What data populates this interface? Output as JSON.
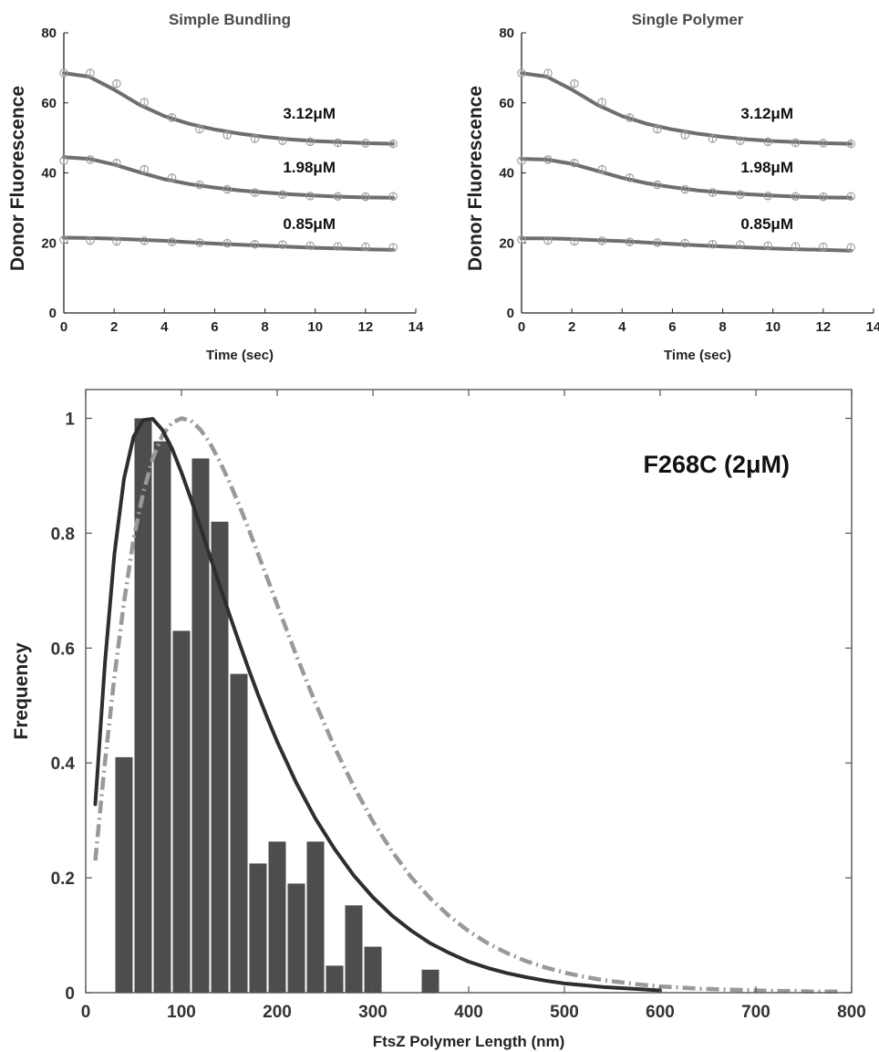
{
  "chart_data": [
    {
      "type": "line",
      "title": "Simple Bundling",
      "xlabel": "Time (sec)",
      "ylabel": "Donor Fluorescence",
      "xlim": [
        0,
        14
      ],
      "ylim": [
        0,
        80
      ],
      "xticks": [
        0,
        2,
        4,
        6,
        8,
        10,
        12,
        14
      ],
      "yticks": [
        0,
        20,
        40,
        60,
        80
      ],
      "grid": false,
      "series": [
        {
          "name": "3.12μM",
          "data_x": [
            0,
            1.05,
            2.1,
            3.2,
            4.3,
            5.4,
            6.5,
            7.6,
            8.7,
            9.8,
            10.9,
            12.0,
            13.1
          ],
          "data_y": [
            68.5,
            68.5,
            65.5,
            60.2,
            55.8,
            52.5,
            50.8,
            49.8,
            49.2,
            48.9,
            48.6,
            48.5,
            48.3
          ],
          "fit_x": [
            0,
            1.0,
            2.0,
            3.0,
            4.0,
            5.0,
            6.0,
            7.0,
            8.0,
            9.0,
            10.0,
            11.0,
            12.0,
            13.1
          ],
          "fit_y": [
            68.5,
            67.5,
            63.8,
            59.5,
            56.2,
            54.0,
            52.4,
            51.2,
            50.3,
            49.6,
            49.1,
            48.8,
            48.5,
            48.3
          ]
        },
        {
          "name": "1.98μM",
          "data_x": [
            0,
            1.05,
            2.1,
            3.2,
            4.3,
            5.4,
            6.5,
            7.6,
            8.7,
            9.8,
            10.9,
            12.0,
            13.1
          ],
          "data_y": [
            43.5,
            43.8,
            42.8,
            41.0,
            38.6,
            36.6,
            35.3,
            34.4,
            33.8,
            33.4,
            33.3,
            33.2,
            33.3
          ],
          "fit_x": [
            0,
            1.0,
            2.0,
            3.0,
            4.0,
            5.0,
            6.0,
            7.0,
            8.0,
            9.0,
            10.0,
            11.0,
            12.0,
            13.1
          ],
          "fit_y": [
            44.5,
            44.0,
            42.4,
            40.2,
            38.2,
            36.8,
            35.8,
            35.0,
            34.4,
            33.9,
            33.5,
            33.2,
            33.0,
            32.9
          ]
        },
        {
          "name": "0.85μM",
          "data_x": [
            0,
            1.05,
            2.1,
            3.2,
            4.3,
            5.4,
            6.5,
            7.6,
            8.7,
            9.8,
            10.9,
            12.0,
            13.1
          ],
          "data_y": [
            20.9,
            20.7,
            20.5,
            20.6,
            20.3,
            20.1,
            19.9,
            19.6,
            19.5,
            19.2,
            19.0,
            18.9,
            18.7
          ],
          "fit_x": [
            0,
            1.0,
            2.0,
            3.0,
            4.0,
            5.0,
            6.0,
            7.0,
            8.0,
            9.0,
            10.0,
            11.0,
            12.0,
            13.1
          ],
          "fit_y": [
            21.5,
            21.4,
            21.2,
            20.9,
            20.6,
            20.2,
            19.8,
            19.5,
            19.2,
            18.9,
            18.6,
            18.4,
            18.2,
            18.0
          ]
        }
      ]
    },
    {
      "type": "line",
      "title": "Single Polymer",
      "xlabel": "Time (sec)",
      "ylabel": "Donor Fluorescence",
      "xlim": [
        0,
        14
      ],
      "ylim": [
        0,
        80
      ],
      "xticks": [
        0,
        2,
        4,
        6,
        8,
        10,
        12,
        14
      ],
      "yticks": [
        0,
        20,
        40,
        60,
        80
      ],
      "grid": false,
      "series": [
        {
          "name": "3.12μM",
          "data_x": [
            0,
            1.05,
            2.1,
            3.2,
            4.3,
            5.4,
            6.5,
            7.6,
            8.7,
            9.8,
            10.9,
            12.0,
            13.1
          ],
          "data_y": [
            68.5,
            68.5,
            65.5,
            60.2,
            55.8,
            52.5,
            50.8,
            49.8,
            49.2,
            48.9,
            48.6,
            48.5,
            48.3
          ],
          "fit_x": [
            0,
            1.0,
            2.0,
            3.0,
            4.0,
            5.0,
            6.0,
            7.0,
            8.0,
            9.0,
            10.0,
            11.0,
            12.0,
            13.1
          ],
          "fit_y": [
            68.5,
            67.5,
            63.8,
            59.5,
            56.2,
            54.0,
            52.4,
            51.2,
            50.3,
            49.6,
            49.1,
            48.8,
            48.5,
            48.3
          ]
        },
        {
          "name": "1.98μM",
          "data_x": [
            0,
            1.05,
            2.1,
            3.2,
            4.3,
            5.4,
            6.5,
            7.6,
            8.7,
            9.8,
            10.9,
            12.0,
            13.1
          ],
          "data_y": [
            43.5,
            43.8,
            42.8,
            41.0,
            38.6,
            36.6,
            35.3,
            34.4,
            33.8,
            33.4,
            33.3,
            33.2,
            33.3
          ],
          "fit_x": [
            0,
            1.0,
            2.0,
            3.0,
            4.0,
            5.0,
            6.0,
            7.0,
            8.0,
            9.0,
            10.0,
            11.0,
            12.0,
            13.1
          ],
          "fit_y": [
            44.0,
            43.8,
            42.6,
            40.6,
            38.6,
            37.0,
            35.9,
            35.0,
            34.4,
            33.9,
            33.5,
            33.2,
            33.0,
            32.9
          ]
        },
        {
          "name": "0.85μM",
          "data_x": [
            0,
            1.05,
            2.1,
            3.2,
            4.3,
            5.4,
            6.5,
            7.6,
            8.7,
            9.8,
            10.9,
            12.0,
            13.1
          ],
          "data_y": [
            20.9,
            20.7,
            20.5,
            20.6,
            20.3,
            20.1,
            19.9,
            19.6,
            19.5,
            19.2,
            19.0,
            18.9,
            18.7
          ],
          "fit_x": [
            0,
            1.0,
            2.0,
            3.0,
            4.0,
            5.0,
            6.0,
            7.0,
            8.0,
            9.0,
            10.0,
            11.0,
            12.0,
            13.1
          ],
          "fit_y": [
            21.3,
            21.3,
            21.1,
            20.8,
            20.5,
            20.1,
            19.7,
            19.3,
            19.0,
            18.7,
            18.4,
            18.2,
            18.0,
            17.8
          ]
        }
      ]
    },
    {
      "type": "bar",
      "title": "",
      "annotation": "F268C (2μM)",
      "xlabel": "FtsZ Polymer Length (nm)",
      "ylabel": "Frequency",
      "xlim": [
        0,
        800
      ],
      "ylim": [
        0,
        1.05
      ],
      "xticks": [
        0,
        100,
        200,
        300,
        400,
        500,
        600,
        700,
        800
      ],
      "yticks": [
        0,
        0.2,
        0.4,
        0.6,
        0.8,
        1
      ],
      "ytick_labels": [
        "0",
        "0.2",
        "0.4",
        "0.6",
        "0.8",
        "1"
      ],
      "grid": false,
      "bar_width": 20,
      "categories": [
        40,
        60,
        80,
        100,
        120,
        140,
        160,
        180,
        200,
        220,
        240,
        260,
        280,
        300,
        360
      ],
      "values": [
        0.41,
        1.0,
        0.96,
        0.63,
        0.93,
        0.82,
        0.555,
        0.225,
        0.263,
        0.19,
        0.263,
        0.047,
        0.152,
        0.08,
        0.04
      ],
      "colors": {
        "bars": "#4d4d4d",
        "solid_curve": "#2e2e2e",
        "dashed_curve": "#999999",
        "axes": "#555555"
      },
      "curves": [
        {
          "style": "solid",
          "x": [
            10,
            20,
            30,
            40,
            50,
            60,
            70,
            80,
            90,
            100,
            110,
            120,
            130,
            140,
            150,
            160,
            170,
            180,
            190,
            200,
            220,
            240,
            260,
            280,
            300,
            320,
            340,
            360,
            380,
            400,
            420,
            440,
            460,
            480,
            500,
            520,
            540,
            560,
            580,
            600
          ],
          "y": [
            0.328,
            0.572,
            0.764,
            0.895,
            0.968,
            0.997,
            0.999,
            0.98,
            0.948,
            0.906,
            0.859,
            0.81,
            0.759,
            0.708,
            0.659,
            0.611,
            0.564,
            0.519,
            0.477,
            0.437,
            0.365,
            0.303,
            0.25,
            0.204,
            0.166,
            0.134,
            0.108,
            0.086,
            0.069,
            0.054,
            0.043,
            0.034,
            0.027,
            0.021,
            0.016,
            0.013,
            0.01,
            0.008,
            0.006,
            0.004
          ]
        },
        {
          "style": "dash-dot",
          "x": [
            10,
            20,
            30,
            40,
            50,
            60,
            70,
            80,
            90,
            100,
            110,
            120,
            130,
            140,
            150,
            160,
            170,
            180,
            190,
            200,
            220,
            240,
            260,
            280,
            300,
            320,
            340,
            360,
            380,
            400,
            420,
            440,
            460,
            480,
            500,
            520,
            540,
            560,
            580,
            600,
            620,
            640,
            660,
            680,
            700,
            720,
            740,
            760,
            780,
            790
          ],
          "y": [
            0.23,
            0.4,
            0.55,
            0.68,
            0.79,
            0.87,
            0.93,
            0.97,
            0.992,
            1.0,
            0.996,
            0.98,
            0.956,
            0.925,
            0.889,
            0.85,
            0.808,
            0.764,
            0.72,
            0.675,
            0.587,
            0.504,
            0.427,
            0.359,
            0.298,
            0.246,
            0.201,
            0.164,
            0.133,
            0.107,
            0.086,
            0.069,
            0.055,
            0.044,
            0.035,
            0.028,
            0.022,
            0.018,
            0.014,
            0.011,
            0.009,
            0.007,
            0.006,
            0.005,
            0.004,
            0.003,
            0.003,
            0.002,
            0.002,
            0.002
          ]
        }
      ]
    }
  ]
}
